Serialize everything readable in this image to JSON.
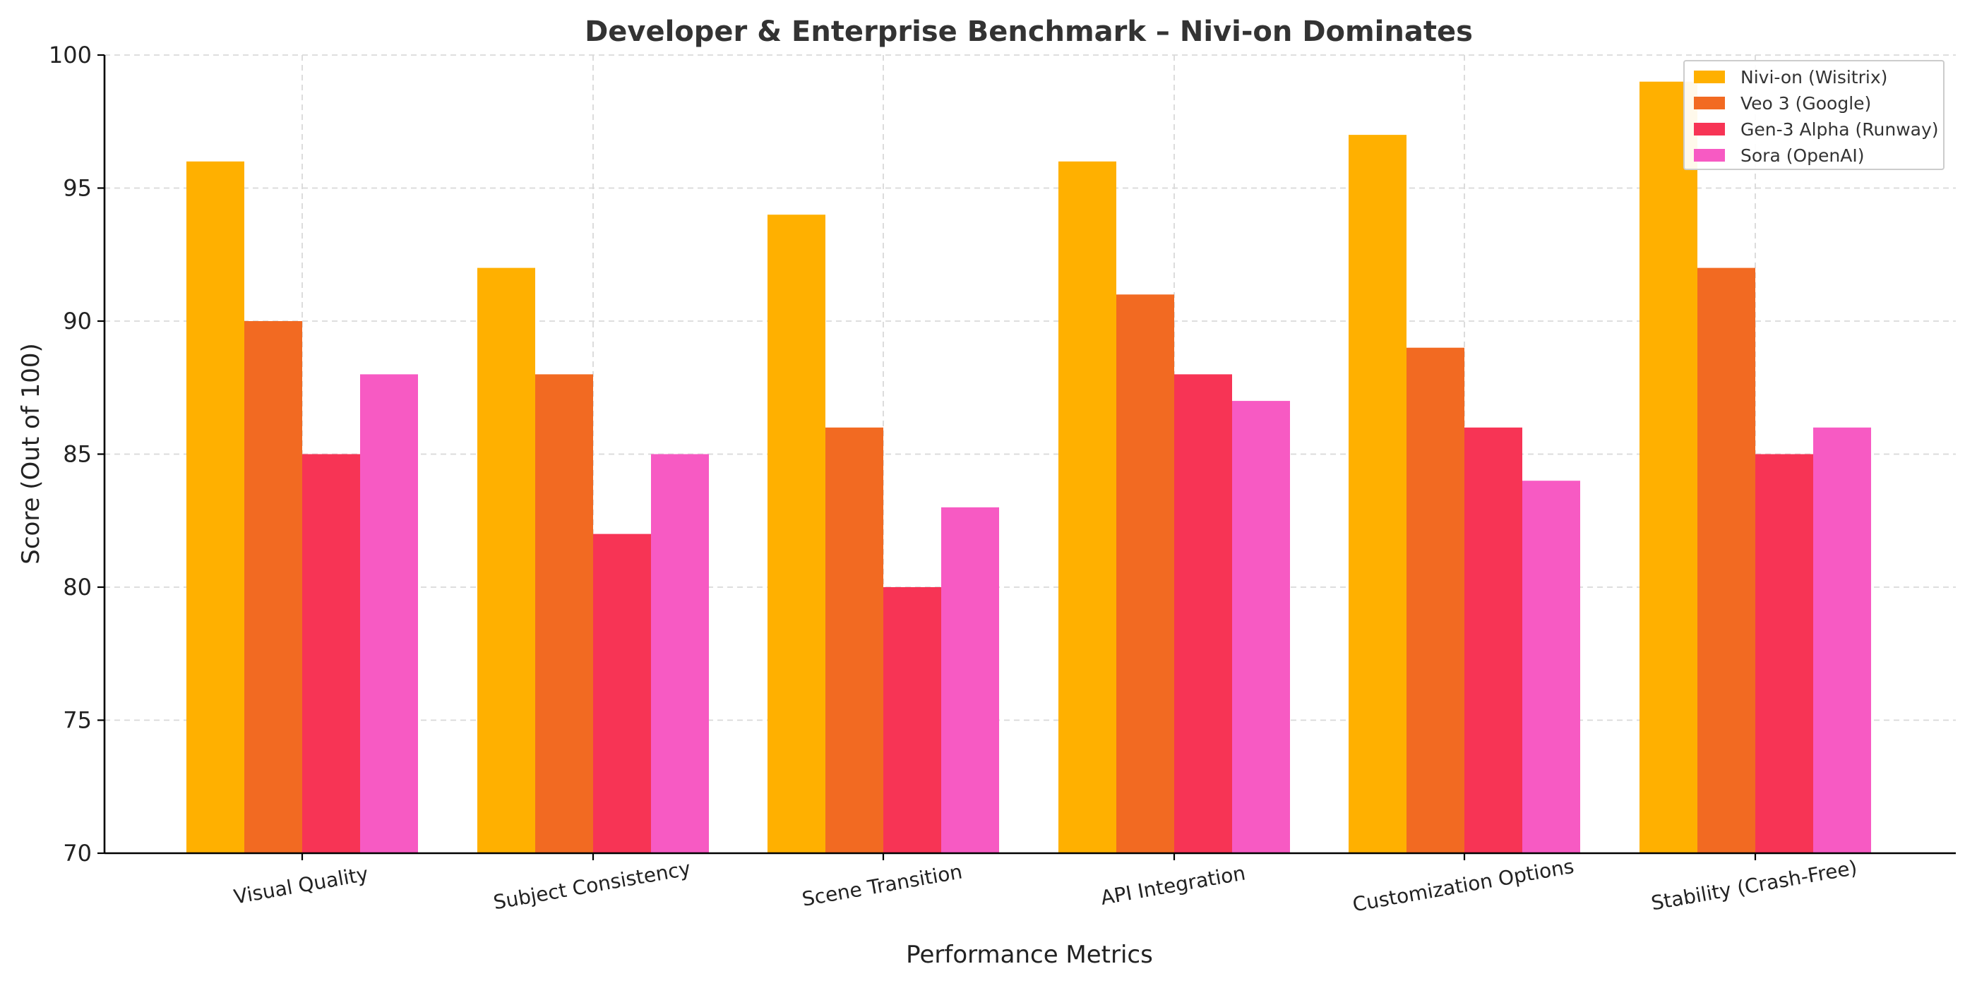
{
  "chart_data": {
    "type": "bar",
    "title": "Developer & Enterprise Benchmark – Nivi-on Dominates",
    "xlabel": "Performance Metrics",
    "ylabel": "Score (Out of 100)",
    "ylim": [
      70,
      100
    ],
    "yticks": [
      70,
      75,
      80,
      85,
      90,
      95,
      100
    ],
    "categories": [
      "Visual Quality",
      "Subject Consistency",
      "Scene Transition",
      "API Integration",
      "Customization Options",
      "Stability (Crash-Free)"
    ],
    "series": [
      {
        "name": "Nivi-on (Wisitrix)",
        "color": "#ffb000",
        "values": [
          96,
          92,
          94,
          96,
          97,
          99
        ]
      },
      {
        "name": "Veo 3 (Google)",
        "color": "#f26a22",
        "values": [
          90,
          88,
          86,
          91,
          89,
          92
        ]
      },
      {
        "name": "Gen-3 Alpha (Runway)",
        "color": "#f73455",
        "values": [
          85,
          82,
          80,
          88,
          86,
          85
        ]
      },
      {
        "name": "Sora (OpenAI)",
        "color": "#f75ac3",
        "values": [
          88,
          85,
          83,
          87,
          84,
          86
        ]
      }
    ],
    "grid": true,
    "legend_position": "top-right"
  }
}
